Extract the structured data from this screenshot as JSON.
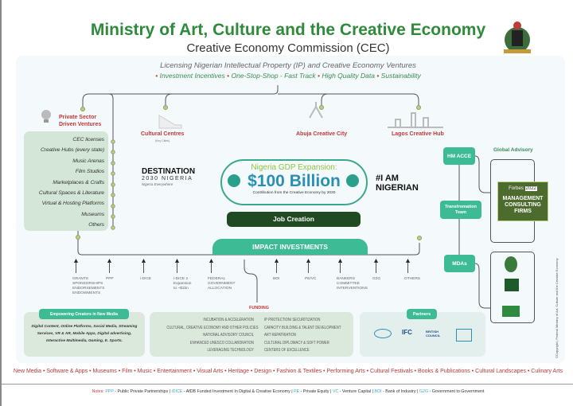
{
  "header": {
    "title": "Ministry of Art, Culture and the Creative Economy",
    "subtitle": "Creative Economy Commission (CEC)"
  },
  "tagline": "Licensing Nigerian Intellectual Property (IP) and Creative Economy Ventures",
  "pillars": [
    "Investment Incentives",
    "One-Stop-Shop - Fast Track",
    "High Quality Data",
    "Sustainability"
  ],
  "nodes": {
    "private": "Private Sector Driven Ventures",
    "cultural": "Cultural Centres",
    "cultural_sub": "(Key Cities)",
    "abuja": "Abuja Creative City",
    "lagos": "Lagos Creative Hub"
  },
  "ventures": [
    "CEC licenses",
    "Creative Hubs (every state)",
    "Music Arenas",
    "Film Studios",
    "Marketplaces & Crafts",
    "Cultural Spaces & Literature",
    "Virtual & Hosting Platforms",
    "Museums",
    "Others"
  ],
  "destination": {
    "line1": "DESTINATION",
    "line2": "2030 NIGERIA",
    "line3": "Nigeria Everywhere"
  },
  "gdp": {
    "heading": "Nigeria GDP Expansion:",
    "value": "$100 Billion",
    "caption": "Contribution from the Creative Economy by 2030"
  },
  "job_creation": "Job Creation",
  "iam": "#I AM NIGERIAN",
  "governance": {
    "hm": "HM ACCE",
    "team": "Transfromation Team",
    "mdas": "MDAs",
    "global": "Global Advisory",
    "forbes": "Forbes",
    "forbes_year": "2022",
    "forbes_title": "MANAGEMENT CONSULTING FIRMS"
  },
  "impact": "IMPACT INVESTMENTS",
  "sources": [
    "GRANTS\nSPONSORSHIPS\nENDORSEMENTS\nENDOWMENTS",
    "PPP",
    "i-DICE",
    "i-DICE 2\nExpansion\nto ~$1bn",
    "FEDERAL\nGOVERNMENT\nALLOCATION",
    "BOI",
    "PE/VC",
    "BANKERS\nCOMMITTEE\nINTERVENTIONS",
    "G2G",
    "OTHERS"
  ],
  "new_media": {
    "label": "Empowering Creators in New Media",
    "text": "Digital Content, Online Platforms, Social Media, Streaming Services, VR & AR, Mobile Apps, Digital advertising, Interactive Multimedia, Gaming, E. Sports."
  },
  "funding": {
    "label": "FUNDING",
    "left": [
      "INCUBATION & ACCELERATION",
      "CULTURAL, CREATIVE ECONOMY AND OTHER POLICIES",
      "NATIONAL ADVISORY COUNCIL",
      "ENHANCED UNESCO COLLABORATION",
      "LEVERAGING TECHNOLOGY"
    ],
    "right": [
      "IP PROTECTION/ SECURITIZATION",
      "CAPACITY BUILDING & TALENT DEVELOPMENT",
      "ART REPATRIATION",
      "CULTURAL DIPLOMACY & SOFT POWER",
      "CENTERS OF EXCELLENCE"
    ]
  },
  "partners": {
    "label": "Partners",
    "logos": [
      "IFC",
      "BRITISH COUNCIL"
    ]
  },
  "copyright": "©Copyright | Federal Ministry of Art, Culture and the Creative Economy",
  "sectors": "New Media • Software & Apps • Museums • Film • Music • Entertainment • Visual Arts • Heritage • Design • Fashion & Textiles • Performing Arts • Cultural Festivals • Books & Publications • Cultural Landscapes • Culinary Arts",
  "notes": {
    "label": "Notes:",
    "items": [
      {
        "abbr": "PPP",
        "text": " - Public Private Partnerships | "
      },
      {
        "abbr": "iDICE",
        "text": " - AfDB Funded Investment In Digital & Creative Economy | "
      },
      {
        "abbr": "PE",
        "text": " - Private Equity | "
      },
      {
        "abbr": "VC",
        "text": " - Venture Capital | "
      },
      {
        "abbr": "BOI",
        "text": " - Bank of Industry | "
      },
      {
        "abbr": "G2G",
        "text": " - Government to Government"
      }
    ]
  },
  "colors": {
    "green": "#2f8a3b",
    "teal": "#3dbb94",
    "red": "#c0393b",
    "blue": "#2a8fb5",
    "dark_green": "#1f4a22"
  }
}
